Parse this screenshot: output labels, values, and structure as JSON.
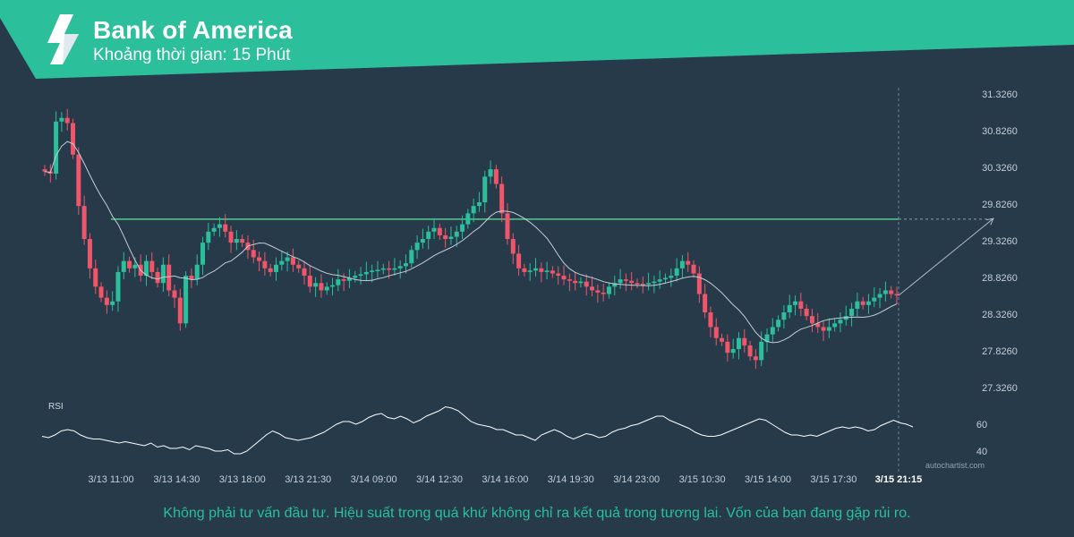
{
  "header": {
    "title": "Bank of America",
    "subtitle": "Khoảng thời gian: 15 Phút",
    "logo_icon": "autochartist-logo-icon",
    "band_color": "#2bbf9b"
  },
  "footer": {
    "disclaimer": "Không phải tư vấn đầu tư. Hiệu suất trong quá khứ không chỉ ra kết quả trong tương lai. Vốn của bạn đang gặp rủi ro."
  },
  "watermark": "autochartist.com",
  "chart_data": {
    "type": "candlestick",
    "y_ticks": [
      "31.3260",
      "30.8260",
      "30.3260",
      "29.8260",
      "29.3260",
      "28.8260",
      "28.3260",
      "27.8260",
      "27.3260"
    ],
    "y_range": [
      27.326,
      31.326
    ],
    "x_ticks": [
      "3/13 11:00",
      "3/13 14:30",
      "3/13 18:00",
      "3/13 21:30",
      "3/14 09:00",
      "3/14 12:30",
      "3/14 16:00",
      "3/14 19:30",
      "3/14 23:00",
      "3/15 10:30",
      "3/15 14:00",
      "3/15 17:30",
      "3/15 21:15"
    ],
    "resistance_level": 29.62,
    "forecast_target": 29.63,
    "colors": {
      "up": "#2bbf9b",
      "down": "#f0556a",
      "ma": "#c5ced6",
      "level": "#57c98f",
      "forecast": "#aab6c0"
    },
    "close_series": [
      30.27,
      30.24,
      30.95,
      31.0,
      30.93,
      30.5,
      29.8,
      29.35,
      28.95,
      28.7,
      28.55,
      28.45,
      28.5,
      28.9,
      29.05,
      28.95,
      29.0,
      28.85,
      29.05,
      28.9,
      28.75,
      29.0,
      28.65,
      28.55,
      28.2,
      28.85,
      28.8,
      29.0,
      29.3,
      29.45,
      29.5,
      29.55,
      29.45,
      29.3,
      29.35,
      29.3,
      29.2,
      29.1,
      29.05,
      28.95,
      28.9,
      29.0,
      29.05,
      29.1,
      29.0,
      28.95,
      28.85,
      28.7,
      28.75,
      28.65,
      28.7,
      28.72,
      28.8,
      28.78,
      28.82,
      28.85,
      28.87,
      28.9,
      28.92,
      28.93,
      28.95,
      28.93,
      28.95,
      28.98,
      29.02,
      29.2,
      29.3,
      29.35,
      29.45,
      29.5,
      29.4,
      29.35,
      29.38,
      29.45,
      29.55,
      29.7,
      29.8,
      29.85,
      30.2,
      30.3,
      30.1,
      29.7,
      29.35,
      29.15,
      28.95,
      28.9,
      28.92,
      28.95,
      28.9,
      28.92,
      28.88,
      28.85,
      28.8,
      28.78,
      28.75,
      28.77,
      28.7,
      28.65,
      28.62,
      28.6,
      28.7,
      28.75,
      28.8,
      28.78,
      28.75,
      28.74,
      28.73,
      28.75,
      28.77,
      28.8,
      28.82,
      28.85,
      28.95,
      29.05,
      29.0,
      28.88,
      28.6,
      28.35,
      28.15,
      28.0,
      27.95,
      27.8,
      27.85,
      28.0,
      27.9,
      27.75,
      27.7,
      27.95,
      28.05,
      28.15,
      28.25,
      28.35,
      28.45,
      28.5,
      28.4,
      28.3,
      28.2,
      28.15,
      28.1,
      28.15,
      28.2,
      28.25,
      28.3,
      28.4,
      28.5,
      28.45,
      28.5,
      28.55,
      28.6,
      28.65,
      28.6,
      28.58
    ],
    "rsi_ticks": [
      "60",
      "40"
    ],
    "rsi_values": [
      51,
      50,
      52,
      55,
      56,
      55,
      52,
      50,
      49,
      49,
      48,
      47,
      46,
      47,
      46,
      45,
      44,
      46,
      43,
      44,
      42,
      42,
      43,
      41,
      44,
      43,
      42,
      40,
      40,
      41,
      38,
      38,
      40,
      44,
      48,
      52,
      55,
      53,
      50,
      49,
      48,
      49,
      50,
      52,
      54,
      57,
      60,
      62,
      62,
      60,
      62,
      65,
      67,
      68,
      65,
      64,
      66,
      64,
      61,
      63,
      66,
      68,
      70,
      73,
      72,
      70,
      66,
      62,
      60,
      59,
      58,
      56,
      56,
      54,
      52,
      52,
      50,
      48,
      52,
      54,
      56,
      54,
      51,
      49,
      51,
      53,
      52,
      50,
      51,
      54,
      56,
      57,
      59,
      60,
      62,
      64,
      66,
      66,
      63,
      61,
      59,
      57,
      54,
      52,
      51,
      51,
      52,
      54,
      56,
      58,
      60,
      62,
      64,
      63,
      60,
      57,
      54,
      52,
      52,
      51,
      52,
      51,
      53,
      55,
      57,
      58,
      57,
      58,
      57,
      55,
      56,
      59,
      61,
      63,
      61,
      60,
      58
    ]
  }
}
